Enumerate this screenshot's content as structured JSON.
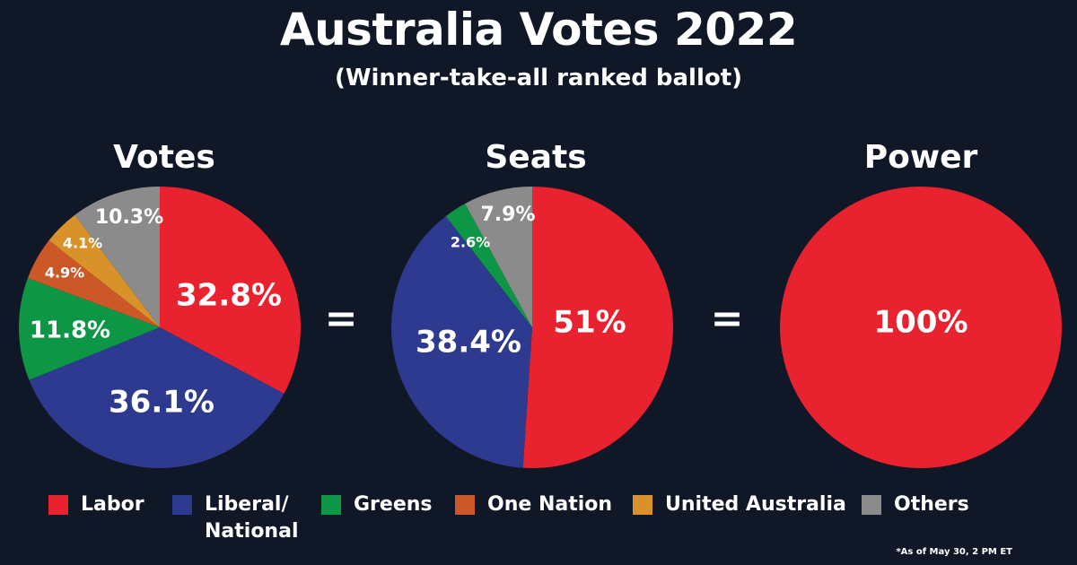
{
  "title": "Australia Votes 2022",
  "subtitle": "(Winner-take-all ranked ballot)",
  "equals_sign": "=",
  "note": "*As of May 30, 2 PM ET",
  "legend": [
    {
      "label": "Labor",
      "color": "#e8222e"
    },
    {
      "label": "Liberal/\nNational",
      "color": "#2e3a8f"
    },
    {
      "label": "Greens",
      "color": "#0c9645"
    },
    {
      "label": "One Nation",
      "color": "#cc5727"
    },
    {
      "label": "United Australia",
      "color": "#d99229"
    },
    {
      "label": "Others",
      "color": "#8b8b8b"
    }
  ],
  "chart_data": [
    {
      "type": "pie",
      "title": "Votes",
      "slices": [
        {
          "name": "Labor",
          "value": 32.8,
          "label": "32.8%",
          "color": "#e8222e"
        },
        {
          "name": "Liberal/National",
          "value": 36.1,
          "label": "36.1%",
          "color": "#2e3a8f"
        },
        {
          "name": "Greens",
          "value": 11.8,
          "label": "11.8%",
          "color": "#0c9645"
        },
        {
          "name": "One Nation",
          "value": 4.9,
          "label": "4.9%",
          "color": "#cc5727"
        },
        {
          "name": "United Australia",
          "value": 4.1,
          "label": "4.1%",
          "color": "#d99229"
        },
        {
          "name": "Others",
          "value": 10.3,
          "label": "10.3%",
          "color": "#8b8b8b"
        }
      ]
    },
    {
      "type": "pie",
      "title": "Seats",
      "slices": [
        {
          "name": "Labor",
          "value": 51,
          "label": "51%",
          "color": "#e8222e"
        },
        {
          "name": "Liberal/National",
          "value": 38.4,
          "label": "38.4%",
          "color": "#2e3a8f"
        },
        {
          "name": "Greens",
          "value": 2.6,
          "label": "2.6%",
          "color": "#0c9645"
        },
        {
          "name": "Others",
          "value": 7.9,
          "label": "7.9%",
          "color": "#8b8b8b"
        }
      ]
    },
    {
      "type": "pie",
      "title": "Power",
      "slices": [
        {
          "name": "Labor",
          "value": 100,
          "label": "100%",
          "color": "#e8222e"
        }
      ]
    }
  ]
}
